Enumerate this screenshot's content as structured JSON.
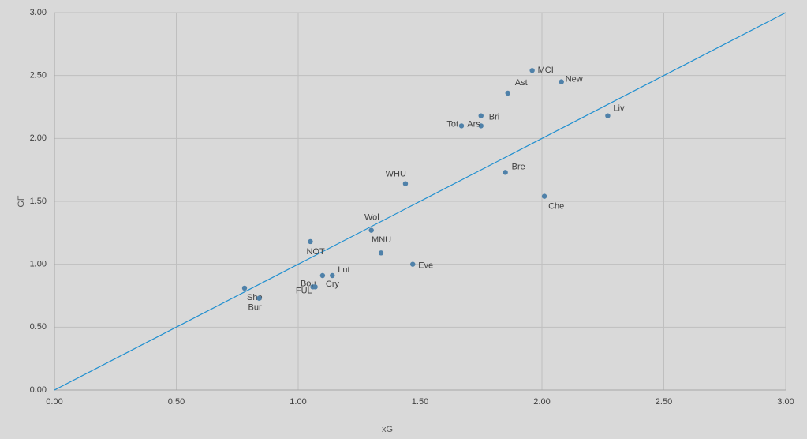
{
  "chart_data": {
    "type": "scatter",
    "x_label": "xG",
    "y_label": "GF",
    "color": "#4f81a9",
    "labels": [
      "MCI",
      "New",
      "Ast",
      "Liv",
      "Bri",
      "Ars",
      "Tot",
      "Bre",
      "Che",
      "WHU",
      "Wol",
      "NOT",
      "MNU",
      "Eve",
      "Lut",
      "Cry",
      "Bou",
      "FUL",
      "She",
      "Bur"
    ],
    "x": [
      1.96,
      2.08,
      1.86,
      2.27,
      1.75,
      1.75,
      1.67,
      1.85,
      2.01,
      1.44,
      1.3,
      1.05,
      1.34,
      1.47,
      1.14,
      1.1,
      1.06,
      1.07,
      0.78,
      0.84
    ],
    "values": [
      2.54,
      2.45,
      2.36,
      2.18,
      2.18,
      2.1,
      2.1,
      1.73,
      1.54,
      1.64,
      1.27,
      1.18,
      1.09,
      1.0,
      0.91,
      0.91,
      0.82,
      0.82,
      0.81,
      0.73
    ],
    "reference_line": {
      "x": [
        0,
        3
      ],
      "values": [
        0,
        3
      ],
      "color": "#1f8fd0"
    },
    "xlim": [
      0,
      3
    ],
    "ylim": [
      0,
      3
    ],
    "xticks": [
      {
        "value": 0,
        "label": "0.00"
      },
      {
        "value": 0.5,
        "label": "0.50"
      },
      {
        "value": 1,
        "label": "1.00"
      },
      {
        "value": 1.5,
        "label": "1.50"
      },
      {
        "value": 2,
        "label": "2.00"
      },
      {
        "value": 2.5,
        "label": "2.50"
      },
      {
        "value": 3,
        "label": "3.00"
      }
    ],
    "yticks": [
      {
        "value": 0,
        "label": "0.00"
      },
      {
        "value": 0.5,
        "label": "0.50"
      },
      {
        "value": 1,
        "label": "1.00"
      },
      {
        "value": 1.5,
        "label": "1.50"
      },
      {
        "value": 2,
        "label": "2.00"
      },
      {
        "value": 2.5,
        "label": "2.50"
      },
      {
        "value": 3,
        "label": "3.00"
      }
    ],
    "grid": true
  }
}
